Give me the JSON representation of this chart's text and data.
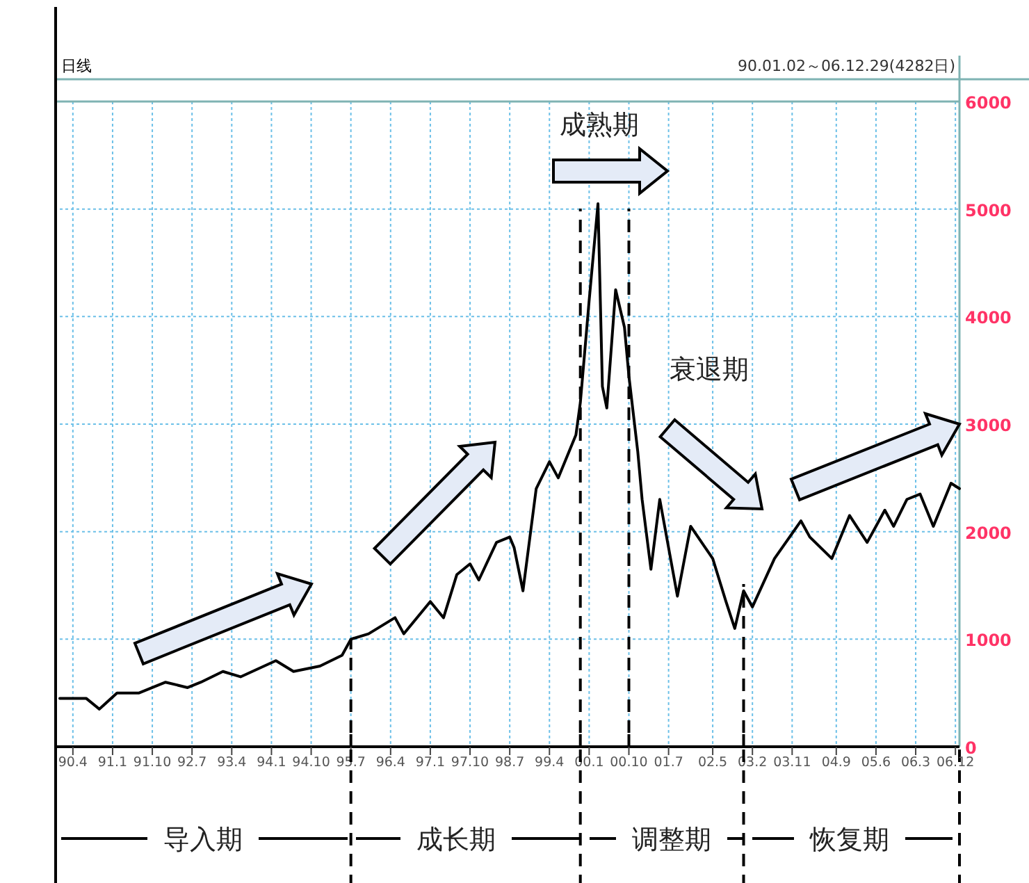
{
  "chart_data": {
    "type": "line",
    "title": "日线",
    "subtitle": "90.01.02～06.12.29(4282日)",
    "color": "#000000",
    "grid": true,
    "x": [
      "1990-01-02",
      "1990-07",
      "1990-10",
      "1991-02",
      "1991-07",
      "1992-01",
      "1992-06",
      "1992-09",
      "1993-02",
      "1993-06",
      "1994-02",
      "1994-06",
      "1994-12",
      "1995-05",
      "1995-07",
      "1995-11",
      "1996-05",
      "1996-07",
      "1997-01",
      "1997-04",
      "1997-07",
      "1997-10",
      "1997-12",
      "1998-04",
      "1998-07",
      "1998-08",
      "1998-10",
      "1999-01",
      "1999-04",
      "1999-06",
      "1999-10",
      "1999-11",
      "2000-01",
      "2000-03",
      "2000-04",
      "2000-05",
      "2000-07",
      "2000-09",
      "2000-10",
      "2000-12",
      "2001-01",
      "2001-03",
      "2001-05",
      "2001-09",
      "2001-12",
      "2002-05",
      "2002-08",
      "2002-10",
      "2002-12",
      "2003-02",
      "2003-07",
      "2004-01",
      "2004-03",
      "2004-08",
      "2004-12",
      "2005-04",
      "2005-08",
      "2005-10",
      "2006-01",
      "2006-04",
      "2006-07",
      "2006-11",
      "2006-12-29"
    ],
    "values": [
      450,
      450,
      350,
      500,
      500,
      600,
      550,
      600,
      700,
      650,
      800,
      700,
      750,
      850,
      1000,
      1050,
      1200,
      1050,
      1350,
      1200,
      1600,
      1700,
      1550,
      1900,
      1950,
      1850,
      1450,
      2400,
      2650,
      2500,
      2900,
      3200,
      4150,
      5050,
      3350,
      3150,
      4250,
      3900,
      3450,
      2750,
      2300,
      1650,
      2300,
      1400,
      2050,
      1750,
      1350,
      1100,
      1450,
      1300,
      1750,
      2100,
      1950,
      1750,
      2150,
      1900,
      2200,
      2050,
      2300,
      2350,
      2050,
      2450,
      2400
    ],
    "xlim": [
      "1990-01-02",
      "2006-12-29"
    ],
    "xticks": [
      {
        "value": "1990-04",
        "label": "90.4"
      },
      {
        "value": "1991-01",
        "label": "91.1"
      },
      {
        "value": "1991-10",
        "label": "91.10"
      },
      {
        "value": "1992-07",
        "label": "92.7"
      },
      {
        "value": "1993-04",
        "label": "93.4"
      },
      {
        "value": "1994-01",
        "label": "94.1"
      },
      {
        "value": "1994-10",
        "label": "94.10"
      },
      {
        "value": "1995-07",
        "label": "95.7"
      },
      {
        "value": "1996-04",
        "label": "96.4"
      },
      {
        "value": "1997-01",
        "label": "97.1"
      },
      {
        "value": "1997-10",
        "label": "97.10"
      },
      {
        "value": "1998-07",
        "label": "98.7"
      },
      {
        "value": "1999-04",
        "label": "99.4"
      },
      {
        "value": "2000-01",
        "label": "00.1"
      },
      {
        "value": "2000-10",
        "label": "00.10"
      },
      {
        "value": "2001-07",
        "label": "01.7"
      },
      {
        "value": "2002-05",
        "label": "02.5"
      },
      {
        "value": "2003-02",
        "label": "03.2"
      },
      {
        "value": "2003-11",
        "label": "03.11"
      },
      {
        "value": "2004-09",
        "label": "04.9"
      },
      {
        "value": "2005-06",
        "label": "05.6"
      },
      {
        "value": "2006-03",
        "label": "06.3"
      },
      {
        "value": "2006-12",
        "label": "06.12"
      }
    ],
    "ylim": [
      0,
      6000
    ],
    "yticks": [
      0,
      1000,
      2000,
      3000,
      4000,
      5000,
      6000
    ],
    "ref_lines": [
      {
        "axis": "x",
        "value": "1995-07",
        "line_style": "dashed"
      },
      {
        "axis": "x",
        "value": "1999-11",
        "line_style": "dashed"
      },
      {
        "axis": "x",
        "value": "2000-10",
        "line_style": "dashed"
      },
      {
        "axis": "x",
        "value": "2002-12",
        "line_style": "dashed"
      }
    ],
    "annotations": [
      "成熟期",
      "衰退期",
      "导入期",
      "成长期",
      "调整期",
      "恢复期"
    ]
  }
}
